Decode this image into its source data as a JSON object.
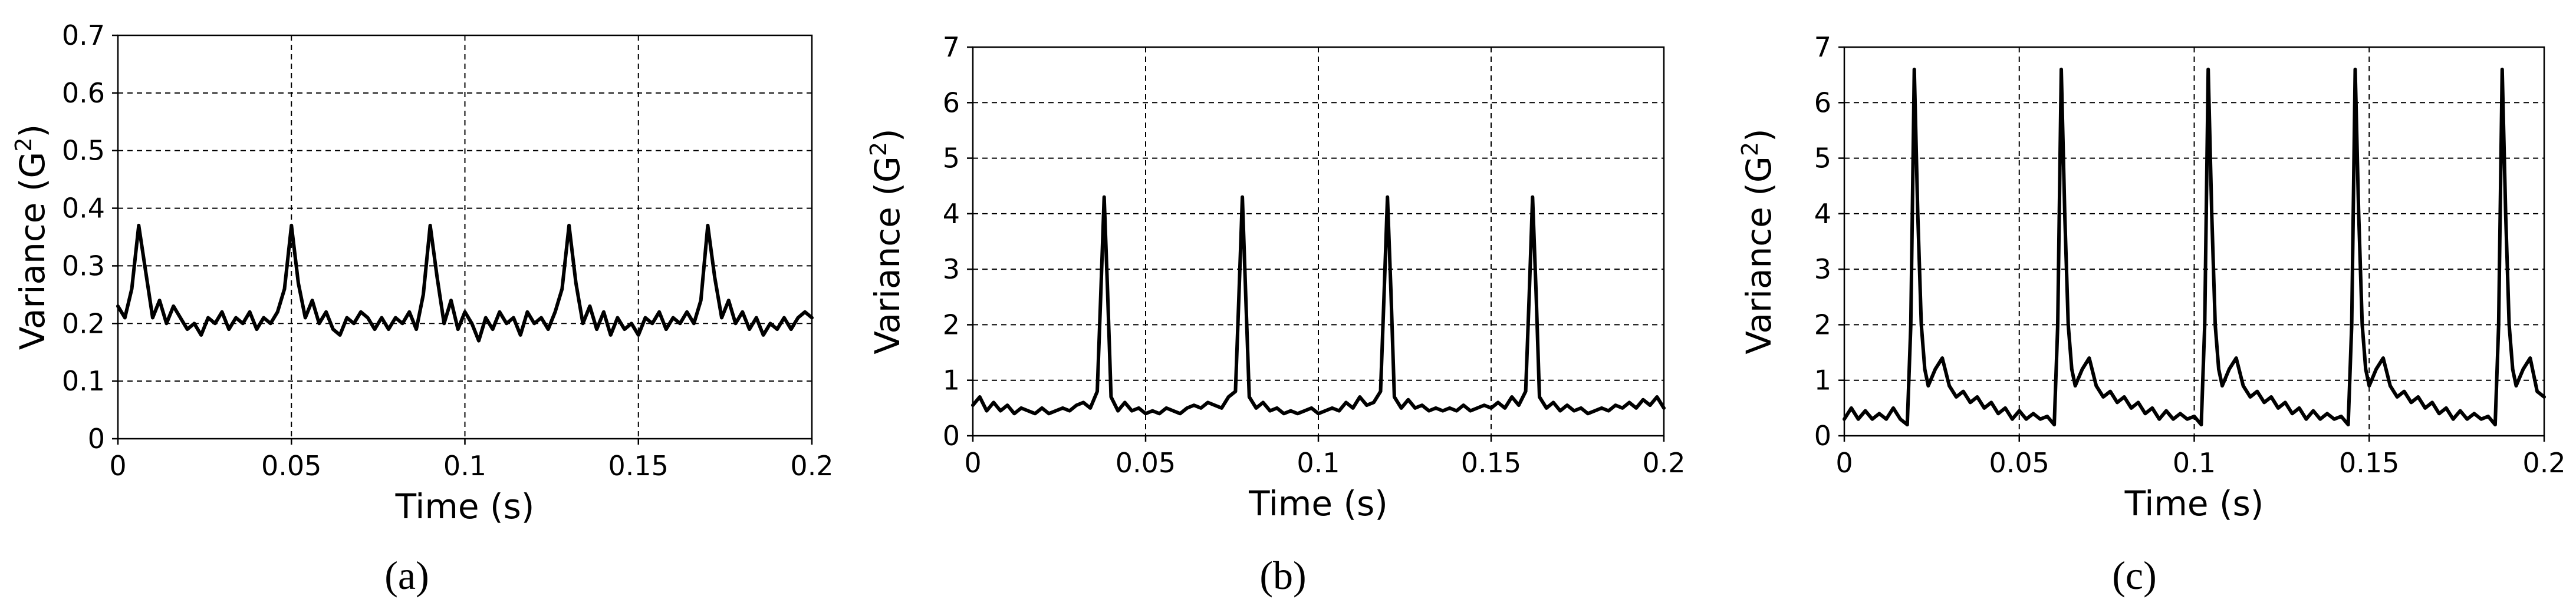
{
  "chart_data": [
    {
      "type": "line",
      "caption": "(a)",
      "xlabel": "Time (s)",
      "ylabel": "Variance (G",
      "ylabel_sup": "2",
      "ylabel_end": ")",
      "xlim": [
        0,
        0.2
      ],
      "ylim": [
        0,
        0.7
      ],
      "xticks": [
        0,
        0.05,
        0.1,
        0.15,
        0.2
      ],
      "xtick_labels": [
        "0",
        "0.05",
        "0.1",
        "0.15",
        "0.2"
      ],
      "yticks": [
        0,
        0.1,
        0.2,
        0.3,
        0.4,
        0.5,
        0.6,
        0.7
      ],
      "ytick_labels": [
        "0",
        "0.1",
        "0.2",
        "0.3",
        "0.4",
        "0.5",
        "0.6",
        "0.7"
      ],
      "grid": "dashed",
      "line_color": "#000000",
      "series": [
        {
          "x": [
            0,
            0.002,
            0.004,
            0.006,
            0.008,
            0.01,
            0.012,
            0.014,
            0.016,
            0.018,
            0.02,
            0.022,
            0.024,
            0.026,
            0.028,
            0.03,
            0.032,
            0.034,
            0.036,
            0.038,
            0.04,
            0.042,
            0.044,
            0.046,
            0.048,
            0.05,
            0.052,
            0.054,
            0.056,
            0.058,
            0.06,
            0.062,
            0.064,
            0.066,
            0.068,
            0.07,
            0.072,
            0.074,
            0.076,
            0.078,
            0.08,
            0.082,
            0.084,
            0.086,
            0.088,
            0.09,
            0.092,
            0.094,
            0.096,
            0.098,
            0.1,
            0.102,
            0.104,
            0.106,
            0.108,
            0.11,
            0.112,
            0.114,
            0.116,
            0.118,
            0.12,
            0.122,
            0.124,
            0.126,
            0.128,
            0.13,
            0.132,
            0.134,
            0.136,
            0.138,
            0.14,
            0.142,
            0.144,
            0.146,
            0.148,
            0.15,
            0.152,
            0.154,
            0.156,
            0.158,
            0.16,
            0.162,
            0.164,
            0.166,
            0.168,
            0.17,
            0.172,
            0.174,
            0.176,
            0.178,
            0.18,
            0.182,
            0.184,
            0.186,
            0.188,
            0.19,
            0.192,
            0.194,
            0.196,
            0.198,
            0.2
          ],
          "y": [
            0.23,
            0.21,
            0.26,
            0.37,
            0.29,
            0.21,
            0.24,
            0.2,
            0.23,
            0.21,
            0.19,
            0.2,
            0.18,
            0.21,
            0.2,
            0.22,
            0.19,
            0.21,
            0.2,
            0.22,
            0.19,
            0.21,
            0.2,
            0.22,
            0.26,
            0.37,
            0.27,
            0.21,
            0.24,
            0.2,
            0.22,
            0.19,
            0.18,
            0.21,
            0.2,
            0.22,
            0.21,
            0.19,
            0.21,
            0.19,
            0.21,
            0.2,
            0.22,
            0.19,
            0.25,
            0.37,
            0.28,
            0.2,
            0.24,
            0.19,
            0.22,
            0.2,
            0.17,
            0.21,
            0.19,
            0.22,
            0.2,
            0.21,
            0.18,
            0.22,
            0.2,
            0.21,
            0.19,
            0.22,
            0.26,
            0.37,
            0.27,
            0.2,
            0.23,
            0.19,
            0.22,
            0.18,
            0.21,
            0.19,
            0.2,
            0.18,
            0.21,
            0.2,
            0.22,
            0.19,
            0.21,
            0.2,
            0.22,
            0.2,
            0.24,
            0.37,
            0.28,
            0.21,
            0.24,
            0.2,
            0.22,
            0.19,
            0.21,
            0.18,
            0.2,
            0.19,
            0.21,
            0.19,
            0.21,
            0.22,
            0.21
          ]
        }
      ]
    },
    {
      "type": "line",
      "caption": "(b)",
      "xlabel": "Time (s)",
      "ylabel": "Variance (G",
      "ylabel_sup": "2",
      "ylabel_end": ")",
      "xlim": [
        0,
        0.2
      ],
      "ylim": [
        0,
        7
      ],
      "xticks": [
        0,
        0.05,
        0.1,
        0.15,
        0.2
      ],
      "xtick_labels": [
        "0",
        "0.05",
        "0.1",
        "0.15",
        "0.2"
      ],
      "yticks": [
        0,
        1,
        2,
        3,
        4,
        5,
        6,
        7
      ],
      "ytick_labels": [
        "0",
        "1",
        "2",
        "3",
        "4",
        "5",
        "6",
        "7"
      ],
      "grid": "dashed",
      "line_color": "#000000",
      "series": [
        {
          "x": [
            0,
            0.002,
            0.004,
            0.006,
            0.008,
            0.01,
            0.012,
            0.014,
            0.016,
            0.018,
            0.02,
            0.022,
            0.024,
            0.026,
            0.028,
            0.03,
            0.032,
            0.034,
            0.036,
            0.037,
            0.038,
            0.039,
            0.04,
            0.042,
            0.044,
            0.046,
            0.048,
            0.05,
            0.052,
            0.054,
            0.056,
            0.058,
            0.06,
            0.062,
            0.064,
            0.066,
            0.068,
            0.07,
            0.072,
            0.074,
            0.076,
            0.077,
            0.078,
            0.079,
            0.08,
            0.082,
            0.084,
            0.086,
            0.088,
            0.09,
            0.092,
            0.094,
            0.096,
            0.098,
            0.1,
            0.102,
            0.104,
            0.106,
            0.108,
            0.11,
            0.112,
            0.114,
            0.116,
            0.118,
            0.119,
            0.12,
            0.121,
            0.122,
            0.124,
            0.126,
            0.128,
            0.13,
            0.132,
            0.134,
            0.136,
            0.138,
            0.14,
            0.142,
            0.144,
            0.146,
            0.148,
            0.15,
            0.152,
            0.154,
            0.156,
            0.158,
            0.16,
            0.161,
            0.162,
            0.163,
            0.164,
            0.166,
            0.168,
            0.17,
            0.172,
            0.174,
            0.176,
            0.178,
            0.18,
            0.182,
            0.184,
            0.186,
            0.188,
            0.19,
            0.192,
            0.194,
            0.196,
            0.198,
            0.2
          ],
          "y": [
            0.55,
            0.7,
            0.45,
            0.6,
            0.45,
            0.55,
            0.4,
            0.5,
            0.45,
            0.4,
            0.5,
            0.4,
            0.45,
            0.5,
            0.45,
            0.55,
            0.6,
            0.5,
            0.8,
            2.5,
            4.3,
            2.6,
            0.7,
            0.45,
            0.6,
            0.45,
            0.5,
            0.4,
            0.45,
            0.4,
            0.5,
            0.45,
            0.4,
            0.5,
            0.55,
            0.5,
            0.6,
            0.55,
            0.5,
            0.7,
            0.8,
            2.5,
            4.3,
            2.5,
            0.7,
            0.5,
            0.6,
            0.45,
            0.5,
            0.4,
            0.45,
            0.4,
            0.45,
            0.5,
            0.4,
            0.45,
            0.5,
            0.45,
            0.6,
            0.5,
            0.7,
            0.55,
            0.6,
            0.8,
            2.5,
            4.3,
            2.6,
            0.7,
            0.5,
            0.65,
            0.5,
            0.55,
            0.45,
            0.5,
            0.45,
            0.5,
            0.45,
            0.55,
            0.45,
            0.5,
            0.55,
            0.5,
            0.6,
            0.5,
            0.7,
            0.55,
            0.8,
            2.5,
            4.3,
            2.6,
            0.7,
            0.5,
            0.6,
            0.45,
            0.55,
            0.45,
            0.5,
            0.4,
            0.45,
            0.5,
            0.45,
            0.55,
            0.5,
            0.6,
            0.5,
            0.65,
            0.55,
            0.7,
            0.5
          ]
        }
      ]
    },
    {
      "type": "line",
      "caption": "(c)",
      "xlabel": "Time (s)",
      "ylabel": "Variance (G",
      "ylabel_sup": "2",
      "ylabel_end": ")",
      "xlim": [
        0,
        0.2
      ],
      "ylim": [
        0,
        7
      ],
      "xticks": [
        0,
        0.05,
        0.1,
        0.15,
        0.2
      ],
      "xtick_labels": [
        "0",
        "0.05",
        "0.1",
        "0.15",
        "0.2"
      ],
      "yticks": [
        0,
        1,
        2,
        3,
        4,
        5,
        6,
        7
      ],
      "ytick_labels": [
        "0",
        "1",
        "2",
        "3",
        "4",
        "5",
        "6",
        "7"
      ],
      "grid": "dashed",
      "line_color": "#000000",
      "series": [
        {
          "x": [
            0,
            0.002,
            0.004,
            0.006,
            0.008,
            0.01,
            0.012,
            0.014,
            0.016,
            0.018,
            0.019,
            0.02,
            0.021,
            0.022,
            0.023,
            0.024,
            0.026,
            0.028,
            0.03,
            0.032,
            0.034,
            0.036,
            0.038,
            0.04,
            0.042,
            0.044,
            0.046,
            0.048,
            0.05,
            0.052,
            0.054,
            0.056,
            0.058,
            0.06,
            0.061,
            0.062,
            0.063,
            0.064,
            0.065,
            0.066,
            0.068,
            0.07,
            0.072,
            0.074,
            0.076,
            0.078,
            0.08,
            0.082,
            0.084,
            0.086,
            0.088,
            0.09,
            0.092,
            0.094,
            0.096,
            0.098,
            0.1,
            0.102,
            0.103,
            0.104,
            0.105,
            0.106,
            0.107,
            0.108,
            0.11,
            0.112,
            0.114,
            0.116,
            0.118,
            0.12,
            0.122,
            0.124,
            0.126,
            0.128,
            0.13,
            0.132,
            0.134,
            0.136,
            0.138,
            0.14,
            0.142,
            0.144,
            0.145,
            0.146,
            0.147,
            0.148,
            0.149,
            0.15,
            0.152,
            0.154,
            0.156,
            0.158,
            0.16,
            0.162,
            0.164,
            0.166,
            0.168,
            0.17,
            0.172,
            0.174,
            0.176,
            0.178,
            0.18,
            0.182,
            0.184,
            0.186,
            0.187,
            0.188,
            0.189,
            0.19,
            0.191,
            0.192,
            0.194,
            0.196,
            0.198,
            0.2
          ],
          "y": [
            0.3,
            0.5,
            0.3,
            0.45,
            0.3,
            0.4,
            0.3,
            0.5,
            0.3,
            0.2,
            2.0,
            6.6,
            4.0,
            2.0,
            1.2,
            0.9,
            1.2,
            1.4,
            0.9,
            0.7,
            0.8,
            0.6,
            0.7,
            0.5,
            0.6,
            0.4,
            0.5,
            0.3,
            0.45,
            0.3,
            0.4,
            0.3,
            0.35,
            0.2,
            2.0,
            6.6,
            4.0,
            2.0,
            1.2,
            0.9,
            1.2,
            1.4,
            0.9,
            0.7,
            0.8,
            0.6,
            0.7,
            0.5,
            0.6,
            0.4,
            0.5,
            0.3,
            0.45,
            0.3,
            0.4,
            0.3,
            0.35,
            0.2,
            2.0,
            6.6,
            4.0,
            2.0,
            1.2,
            0.9,
            1.2,
            1.4,
            0.9,
            0.7,
            0.8,
            0.6,
            0.7,
            0.5,
            0.6,
            0.4,
            0.5,
            0.3,
            0.45,
            0.3,
            0.4,
            0.3,
            0.35,
            0.2,
            2.0,
            6.6,
            4.0,
            2.0,
            1.2,
            0.9,
            1.2,
            1.4,
            0.9,
            0.7,
            0.8,
            0.6,
            0.7,
            0.5,
            0.6,
            0.4,
            0.5,
            0.3,
            0.45,
            0.3,
            0.4,
            0.3,
            0.35,
            0.2,
            2.0,
            6.6,
            4.0,
            2.0,
            1.2,
            0.9,
            1.2,
            1.4,
            0.8,
            0.7
          ]
        }
      ]
    }
  ]
}
